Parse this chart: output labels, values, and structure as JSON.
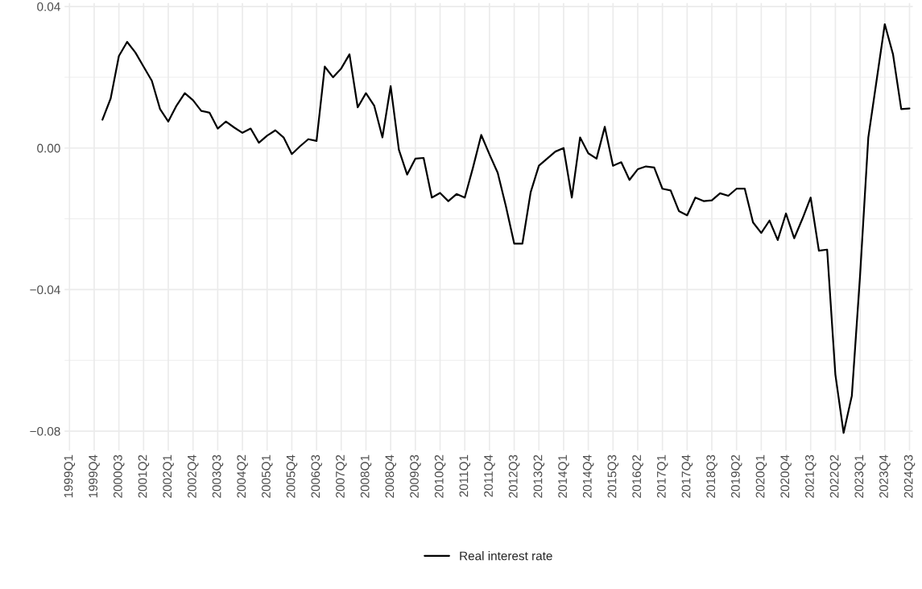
{
  "chart_data": {
    "type": "line",
    "categories": [
      "1999Q1",
      null,
      null,
      "1999Q4",
      null,
      null,
      "2000Q3",
      null,
      null,
      "2001Q2",
      null,
      null,
      "2002Q1",
      null,
      null,
      "2002Q4",
      null,
      null,
      "2003Q3",
      null,
      null,
      "2004Q2",
      null,
      null,
      "2005Q1",
      null,
      null,
      "2005Q4",
      null,
      null,
      "2006Q3",
      null,
      null,
      "2007Q2",
      null,
      null,
      "2008Q1",
      null,
      null,
      "2008Q4",
      null,
      null,
      "2009Q3",
      null,
      null,
      "2010Q2",
      null,
      null,
      "2011Q1",
      null,
      null,
      "2011Q4",
      null,
      null,
      "2012Q3",
      null,
      null,
      "2013Q2",
      null,
      null,
      "2014Q1",
      null,
      null,
      "2014Q4",
      null,
      null,
      "2015Q3",
      null,
      null,
      "2016Q2",
      null,
      null,
      "2017Q1",
      null,
      null,
      "2017Q4",
      null,
      null,
      "2018Q3",
      null,
      null,
      "2019Q2",
      null,
      null,
      "2020Q1",
      null,
      null,
      "2020Q4",
      null,
      null,
      "2021Q3",
      null,
      null,
      "2022Q2",
      null,
      null,
      "2023Q1",
      null,
      null,
      "2023Q4",
      null,
      null,
      "2024Q3"
    ],
    "series": [
      {
        "name": "Real interest rate",
        "color": "#000000",
        "values": [
          null,
          null,
          null,
          null,
          0.008,
          0.014,
          0.026,
          0.03,
          0.027,
          0.023,
          0.019,
          0.011,
          0.0075,
          0.012,
          0.0155,
          0.0135,
          0.0105,
          0.01,
          0.0055,
          0.0075,
          0.0058,
          0.0043,
          0.0055,
          0.0015,
          0.0035,
          0.005,
          0.003,
          -0.0017,
          0.0005,
          0.0025,
          0.002,
          0.023,
          0.02,
          0.0225,
          0.0265,
          0.0115,
          0.0155,
          0.012,
          0.003,
          0.0175,
          -0.0005,
          -0.0075,
          -0.003,
          -0.0028,
          -0.014,
          -0.0127,
          -0.015,
          -0.013,
          -0.014,
          -0.0055,
          0.0037,
          -0.0018,
          -0.007,
          -0.0165,
          -0.027,
          -0.027,
          -0.0125,
          -0.005,
          -0.003,
          -0.001,
          0.0,
          -0.014,
          0.003,
          -0.0015,
          -0.003,
          0.006,
          -0.005,
          -0.004,
          -0.009,
          -0.006,
          -0.0052,
          -0.0055,
          -0.0115,
          -0.012,
          -0.0178,
          -0.019,
          -0.014,
          -0.015,
          -0.0148,
          -0.0128,
          -0.0135,
          -0.0115,
          -0.0115,
          -0.021,
          -0.024,
          -0.0205,
          -0.026,
          -0.0185,
          -0.0255,
          -0.02,
          -0.014,
          -0.029,
          -0.0287,
          -0.064,
          -0.0805,
          -0.07,
          -0.036,
          0.003,
          0.019,
          0.035,
          0.0265,
          0.011,
          0.0112
        ]
      }
    ],
    "ylim": [
      -0.0855,
      0.041
    ],
    "yticks": [
      {
        "value": -0.08,
        "label": "−0.08"
      },
      {
        "value": -0.06,
        "label": null
      },
      {
        "value": -0.04,
        "label": "−0.04"
      },
      {
        "value": -0.02,
        "label": null
      },
      {
        "value": 0.0,
        "label": "0.00"
      },
      {
        "value": 0.02,
        "label": null
      },
      {
        "value": 0.04,
        "label": "0.04"
      }
    ],
    "grid": true,
    "legend": "bottom",
    "line_style": "solid",
    "marker": "none"
  }
}
